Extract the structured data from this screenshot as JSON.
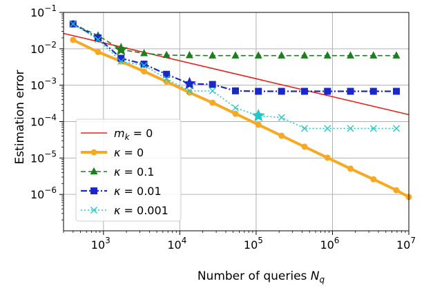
{
  "chart_data": {
    "type": "line",
    "xscale": "log",
    "yscale": "log",
    "xlabel": "Number of queries N_q",
    "xlabel_text": "Number of queries ",
    "xlabel_var": "N",
    "xlabel_sub": "q",
    "ylabel": "Estimation error",
    "xlim": [
      300,
      10000000
    ],
    "ylim": [
      1e-07,
      0.1
    ],
    "grid": true,
    "legend_position": "lower-left",
    "x_ticks": [
      {
        "value": 1000,
        "base": "10",
        "exp": "3"
      },
      {
        "value": 10000,
        "base": "10",
        "exp": "4"
      },
      {
        "value": 100000,
        "base": "10",
        "exp": "5"
      },
      {
        "value": 1000000,
        "base": "10",
        "exp": "6"
      },
      {
        "value": 10000000,
        "base": "10",
        "exp": "7"
      }
    ],
    "y_ticks": [
      {
        "value": 1e-06,
        "base": "10",
        "exp": "−6"
      },
      {
        "value": 1e-05,
        "base": "10",
        "exp": "−5"
      },
      {
        "value": 0.0001,
        "base": "10",
        "exp": "−4"
      },
      {
        "value": 0.001,
        "base": "10",
        "exp": "−3"
      },
      {
        "value": 0.01,
        "base": "10",
        "exp": "−2"
      },
      {
        "value": 0.1,
        "base": "10",
        "exp": "−1"
      }
    ],
    "series": [
      {
        "name": "m_k = 0",
        "label_var": "m",
        "label_sub": "k",
        "label_rest": " = 0",
        "color": "#e8211c",
        "style": "solid",
        "marker": "none",
        "x": [
          300,
          10000000
        ],
        "y": [
          0.0265,
          0.000155
        ]
      },
      {
        "name": "κ = 0",
        "label_var": "κ",
        "label_sub": "",
        "label_rest": " = 0",
        "color": "#f8a821",
        "style": "solid",
        "marker": "circle",
        "x": [
          400,
          850,
          1700,
          3400,
          6700,
          13400,
          26800,
          53600,
          107000,
          215000,
          430000,
          860000,
          1720000,
          3440000,
          6870000,
          10000000
        ],
        "y": [
          0.0175,
          0.0082,
          0.0045,
          0.0024,
          0.00125,
          0.00063,
          0.00033,
          0.000165,
          8.25e-05,
          4.1e-05,
          2.05e-05,
          1.02e-05,
          5.1e-06,
          2.6e-06,
          1.3e-06,
          8.5e-07
        ]
      },
      {
        "name": "κ = 0.1",
        "label_var": "κ",
        "label_sub": "",
        "label_rest": " = 0.1",
        "color": "#1e7d1e",
        "style": "dashed",
        "marker": "triangle",
        "x": [
          400,
          850,
          1700,
          3400,
          6700,
          13400,
          26800,
          53600,
          107000,
          215000,
          430000,
          860000,
          1720000,
          3440000,
          6870000
        ],
        "y": [
          0.048,
          0.023,
          0.0095,
          0.0075,
          0.0067,
          0.0066,
          0.0065,
          0.0065,
          0.0065,
          0.0065,
          0.0065,
          0.0065,
          0.0065,
          0.0065,
          0.0065
        ],
        "highlight_index": 2
      },
      {
        "name": "κ = 0.01",
        "label_var": "κ",
        "label_sub": "",
        "label_rest": " = 0.01",
        "color": "#1a28c8",
        "style": "dashdot",
        "marker": "square",
        "x": [
          400,
          850,
          1700,
          3400,
          6700,
          13400,
          26800,
          53600,
          107000,
          215000,
          430000,
          860000,
          1720000,
          3440000,
          6870000
        ],
        "y": [
          0.048,
          0.02,
          0.0055,
          0.0038,
          0.002,
          0.0011,
          0.00105,
          0.0007,
          0.00068,
          0.00068,
          0.00068,
          0.00068,
          0.00068,
          0.00068,
          0.00068
        ],
        "highlight_index": 5
      },
      {
        "name": "κ = 0.001",
        "label_var": "κ",
        "label_sub": "",
        "label_rest": " = 0.001",
        "color": "#1ec8c8",
        "style": "dotted",
        "marker": "x",
        "x": [
          400,
          850,
          1700,
          3400,
          6700,
          13400,
          26800,
          53600,
          107000,
          215000,
          430000,
          860000,
          1720000,
          3440000,
          6870000
        ],
        "y": [
          0.048,
          0.018,
          0.0045,
          0.0035,
          0.0015,
          0.0007,
          0.0007,
          0.00024,
          0.000145,
          0.00013,
          6.5e-05,
          6.5e-05,
          6.5e-05,
          6.5e-05,
          6.5e-05
        ],
        "highlight_index": 8
      }
    ]
  }
}
